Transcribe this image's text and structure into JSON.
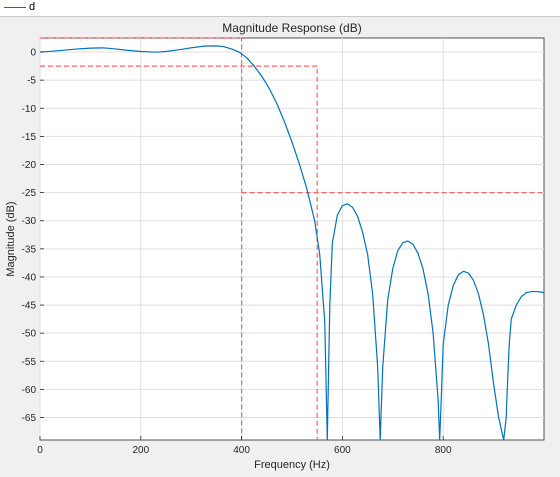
{
  "legend": {
    "series_label": "d"
  },
  "chart_data": {
    "type": "line",
    "title": "Magnitude Response (dB)",
    "xlabel": "Frequency (Hz)",
    "ylabel": "Magnitude (dB)",
    "xlim": [
      0,
      1000
    ],
    "ylim": [
      -69,
      2.5
    ],
    "xticks": [
      0,
      200,
      400,
      600,
      800
    ],
    "yticks": [
      0,
      -5,
      -10,
      -15,
      -20,
      -25,
      -30,
      -35,
      -40,
      -45,
      -50,
      -55,
      -60,
      -65
    ],
    "grid": true,
    "colors": {
      "series": "#0072bd",
      "mask": "#ff6464"
    },
    "series": [
      {
        "name": "d",
        "x": [
          0,
          25,
          50,
          75,
          100,
          125,
          150,
          175,
          200,
          225,
          235,
          250,
          275,
          300,
          325,
          350,
          365,
          380,
          395,
          410,
          425,
          440,
          455,
          470,
          485,
          500,
          515,
          530,
          545,
          555,
          565,
          570,
          575,
          580,
          590,
          600,
          610,
          620,
          630,
          640,
          650,
          660,
          670,
          675,
          680,
          690,
          700,
          710,
          720,
          730,
          740,
          750,
          760,
          770,
          780,
          790,
          793,
          796,
          800,
          810,
          820,
          830,
          840,
          850,
          860,
          870,
          880,
          890,
          900,
          910,
          920,
          925,
          928,
          931,
          935,
          945,
          955,
          965,
          975,
          985,
          995,
          1000
        ],
        "y": [
          0,
          0.15,
          0.35,
          0.55,
          0.7,
          0.75,
          0.55,
          0.3,
          0.1,
          0.0,
          0.0,
          0.1,
          0.4,
          0.75,
          1.05,
          1.1,
          0.95,
          0.55,
          0.0,
          -1.0,
          -2.5,
          -4.3,
          -6.5,
          -9.2,
          -12.4,
          -16.0,
          -20.0,
          -24.5,
          -30.0,
          -36.0,
          -48.0,
          -69.0,
          -45.0,
          -34.0,
          -29.0,
          -27.3,
          -27.0,
          -27.6,
          -29.2,
          -32.0,
          -36.0,
          -43.0,
          -56.0,
          -69.0,
          -56.0,
          -44.0,
          -38.5,
          -35.3,
          -33.9,
          -33.6,
          -34.2,
          -35.8,
          -38.6,
          -43.0,
          -50.0,
          -62.0,
          -69.0,
          -62.0,
          -52.0,
          -45.0,
          -41.5,
          -39.6,
          -39.0,
          -39.3,
          -40.6,
          -43.0,
          -46.8,
          -52.0,
          -59.0,
          -65.0,
          -69.0,
          -65.0,
          -58.0,
          -52.0,
          -47.5,
          -45.0,
          -43.5,
          -42.8,
          -42.6,
          -42.6,
          -42.7,
          -42.8
        ]
      }
    ],
    "mask": [
      {
        "x": [
          0,
          400,
          400
        ],
        "y": [
          2.5,
          2.5,
          -69
        ]
      },
      {
        "x": [
          0,
          550,
          550
        ],
        "y": [
          -2.5,
          -2.5,
          -69
        ]
      },
      {
        "x": [
          400,
          1000
        ],
        "y": [
          -25,
          -25
        ]
      }
    ]
  }
}
